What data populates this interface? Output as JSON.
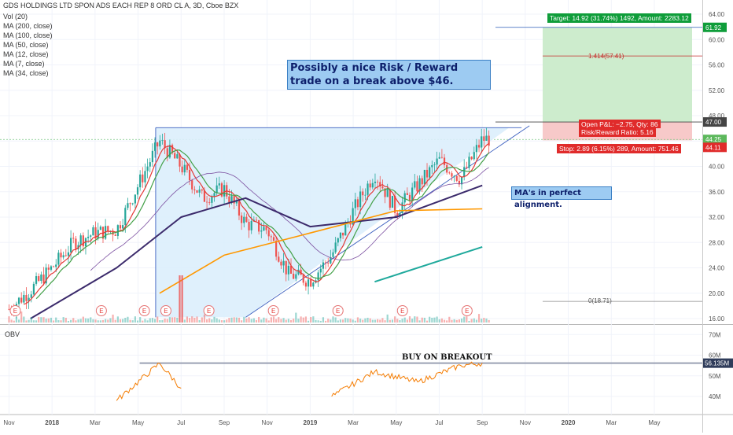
{
  "header": {
    "symbol_line": "GDS HOLDINGS LTD SPON ADS EACH REP 8 ORD CL A, 3D, Cboe BZX",
    "indicators": [
      "Vol (20)",
      "MA (200, close)",
      "MA (100, close)",
      "MA (50, close)",
      "MA (12, close)",
      "MA (7, close)",
      "MA (34, close)"
    ]
  },
  "annotations": {
    "rr_note": "Possibly a nice Risk / Reward trade on a break above $46.",
    "ma_note": "MA's in perfect alignment.",
    "target_label": "Target: 14.92 (31.74%) 1492, Amount: 2283.12",
    "pnl_label": "Open P&L: −2.75, Qty: 86",
    "rr_ratio_label": "Risk/Reward Ratio: 5.16",
    "stop_label": "Stop: 2.89 (6.15%) 289, Amount: 751.46",
    "fib_upper": "1.414(57.41)",
    "fib_lower": "0(18.71)",
    "obv_note": "BUY ON BREAKOUT",
    "earnings_marker": "E"
  },
  "colors": {
    "up": "#26a69a",
    "down": "#ef5350",
    "ma7": "#e53935",
    "ma12": "#43a047",
    "ma34": "#7b4fa0",
    "ma50": "#3b2a6b",
    "ma100": "#ff9800",
    "ma200": "#1fa99c",
    "obv": "#f57c00",
    "triangle": "#dceefc",
    "target_zone": "#cdeccd",
    "stop_zone": "#f7c9c9"
  },
  "chart_data": [
    {
      "type": "line",
      "title": "GDS HOLDINGS LTD SPON ADS EACH REP 8 ORD CL A, 3D, Cboe BZX",
      "x_ticks": [
        "Nov",
        "2018",
        "Mar",
        "May",
        "Jul",
        "Sep",
        "Nov",
        "2019",
        "Mar",
        "May",
        "Jul",
        "Sep",
        "Nov",
        "2020",
        "Mar",
        "May"
      ],
      "y_ticks": [
        16.0,
        20.0,
        24.0,
        28.0,
        32.0,
        36.0,
        40.0,
        44.0,
        48.0,
        52.0,
        56.0,
        60.0,
        64.0
      ],
      "ylim": [
        16,
        64
      ],
      "price_labels": {
        "last": "44.25",
        "stop": "44.11",
        "entry": "47.00",
        "target": "61.92"
      },
      "grid": true,
      "series": [
        {
          "name": "Price",
          "x": [
            "2017-11",
            "2017-12",
            "2018-01",
            "2018-02",
            "2018-03",
            "2018-04",
            "2018-05",
            "2018-06",
            "2018-07",
            "2018-08",
            "2018-09",
            "2018-10",
            "2018-11",
            "2018-12",
            "2019-01",
            "2019-02",
            "2019-03",
            "2019-04",
            "2019-05",
            "2019-06",
            "2019-07",
            "2019-08",
            "2019-09"
          ],
          "values": [
            17.5,
            20.5,
            24.0,
            28.0,
            29.5,
            30.0,
            37.0,
            44.0,
            40.0,
            35.0,
            36.5,
            31.0,
            30.0,
            23.0,
            22.0,
            26.0,
            33.0,
            39.0,
            33.0,
            37.0,
            41.0,
            38.0,
            44.3
          ]
        },
        {
          "name": "MA (200, close)",
          "x": [
            "2019-04",
            "2019-09"
          ],
          "values": [
            21.8,
            27.3
          ]
        },
        {
          "name": "MA (100, close)",
          "x": [
            "2018-06",
            "2018-09",
            "2019-01",
            "2019-05",
            "2019-09"
          ],
          "values": [
            20.0,
            26.0,
            29.5,
            33.0,
            33.3
          ]
        },
        {
          "name": "MA (50, close)",
          "x": [
            "2017-12",
            "2018-04",
            "2018-07",
            "2018-10",
            "2019-01",
            "2019-05",
            "2019-09"
          ],
          "values": [
            16.0,
            24.0,
            32.0,
            35.0,
            30.5,
            32.0,
            37.0
          ]
        }
      ]
    },
    {
      "type": "line",
      "title": "OBV",
      "y_ticks": [
        "70M",
        "60M",
        "50M",
        "40M"
      ],
      "last_label": "56.135M",
      "series": [
        {
          "name": "OBV",
          "x": [
            "2018-04",
            "2018-06",
            "2018-07",
            "2019-02",
            "2019-04",
            "2019-06",
            "2019-08",
            "2019-09"
          ],
          "values": [
            38,
            56,
            44,
            40,
            52,
            47,
            55,
            56.135
          ]
        }
      ]
    }
  ]
}
